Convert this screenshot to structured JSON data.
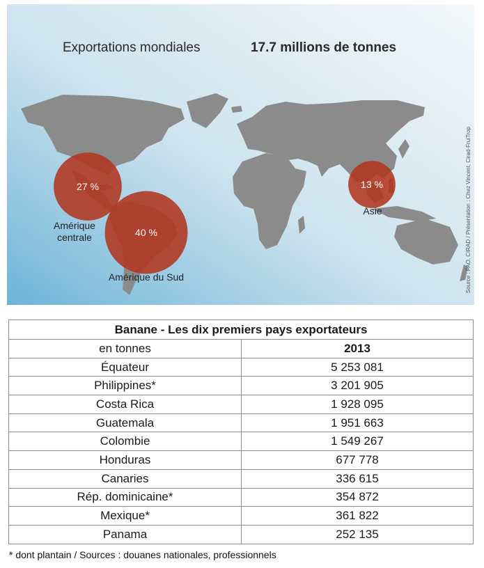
{
  "map": {
    "title_left": "Exportations mondiales",
    "title_right": "17.7 millions de tonnes",
    "source": "Source : FAO, CIRAD / Présentation : Chez Vincent, Cirad-FruiTrop",
    "ocean_colors": [
      "#f4f8fa",
      "#cde3ee",
      "#6db4d8"
    ],
    "land_color": "#8b8b8b",
    "bubble_color": "#b0361f"
  },
  "chart_data": {
    "type": "map-bubble",
    "title": "Exportations mondiales",
    "total": "17.7 millions de tonnes",
    "regions": [
      {
        "name": "Amérique centrale",
        "label": "27 %",
        "share": 27
      },
      {
        "name": "Amérique du Sud",
        "label": "40 %",
        "share": 40
      },
      {
        "name": "Asie",
        "label": "13 %",
        "share": 13
      }
    ],
    "table": {
      "title": "Banane - Les dix premiers pays exportateurs",
      "unit": "en tonnes",
      "year": "2013",
      "rows": [
        {
          "country": "Équateur",
          "value": "5 253 081"
        },
        {
          "country": "Philippines*",
          "value": "3 201 905"
        },
        {
          "country": "Costa Rica",
          "value": "1 928 095"
        },
        {
          "country": "Guatemala",
          "value": "1 951 663"
        },
        {
          "country": "Colombie",
          "value": "1 549 267"
        },
        {
          "country": "Honduras",
          "value": "677 778"
        },
        {
          "country": "Canaries",
          "value": "336 615"
        },
        {
          "country": "Rép. dominicaine*",
          "value": "354 872"
        },
        {
          "country": "Mexique*",
          "value": "361 822"
        },
        {
          "country": "Panama",
          "value": "252 135"
        }
      ]
    },
    "footnote": "* dont plantain / Sources : douanes nationales, professionnels"
  }
}
